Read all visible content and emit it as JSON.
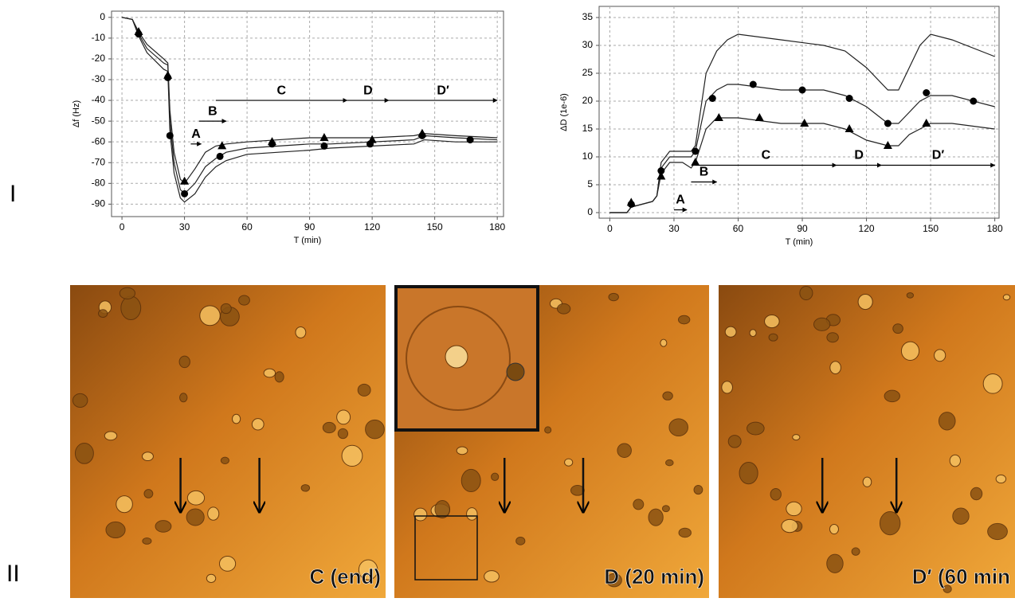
{
  "figure": {
    "panel_labels": [
      "I",
      "II"
    ]
  },
  "chart_data": [
    {
      "type": "line",
      "x_label": "T (min)",
      "y_label": "Δf (Hz)",
      "grid": true,
      "xlim": [
        -5,
        183
      ],
      "ylim": [
        -96,
        3
      ],
      "xticks": [
        0,
        30,
        60,
        90,
        120,
        150,
        180
      ],
      "yticks": [
        0,
        -10,
        -20,
        -30,
        -40,
        -50,
        -60,
        -70,
        -80,
        -90
      ],
      "x": [
        0,
        5,
        8,
        12,
        20,
        22,
        23,
        25,
        28,
        30,
        35,
        40,
        45,
        50,
        60,
        75,
        90,
        100,
        120,
        140,
        145,
        160,
        180
      ],
      "series": [
        {
          "color": "#222222",
          "values": [
            0,
            -1,
            -7,
            -13,
            -20,
            -22,
            -45,
            -65,
            -78,
            -80,
            -73,
            -65,
            -62,
            -61,
            -60,
            -59,
            -58,
            -58,
            -58,
            -57,
            -56,
            -57,
            -58
          ]
        },
        {
          "color": "#222222",
          "values": [
            0,
            -1,
            -8,
            -15,
            -22,
            -23,
            -50,
            -70,
            -83,
            -85,
            -80,
            -72,
            -68,
            -65,
            -63,
            -62,
            -61,
            -61,
            -60,
            -59,
            -57,
            -58,
            -59
          ]
        },
        {
          "color": "#222222",
          "values": [
            0,
            -1,
            -9,
            -17,
            -25,
            -26,
            -55,
            -75,
            -87,
            -89,
            -85,
            -77,
            -72,
            -69,
            -66,
            -65,
            -64,
            -63,
            -62,
            -61,
            -59,
            -60,
            -60
          ]
        }
      ],
      "markers": [
        {
          "shape": "triangle",
          "color": "#000000",
          "x": [
            8,
            22,
            30,
            48,
            72,
            97,
            120,
            144
          ],
          "values": [
            -7,
            -28,
            -79,
            -62,
            -60,
            -58,
            -59,
            -56
          ]
        },
        {
          "shape": "circle",
          "color": "#000000",
          "x": [
            8,
            22,
            23,
            30,
            47,
            72,
            97,
            119,
            144,
            167
          ],
          "values": [
            -8,
            -29,
            -57,
            -85,
            -67,
            -61,
            -62,
            -61,
            -57,
            -59
          ]
        }
      ],
      "phases": [
        {
          "label": "A",
          "start": 33,
          "end": 38,
          "y": -61
        },
        {
          "label": "B",
          "start": 37,
          "end": 50,
          "y": -50
        },
        {
          "label": "C",
          "start": 45,
          "end": 108,
          "y": -40
        },
        {
          "label": "D",
          "start": 108,
          "end": 128,
          "y": -40
        },
        {
          "label": "D′",
          "start": 128,
          "end": 180,
          "y": -40
        }
      ]
    },
    {
      "type": "line",
      "x_label": "T (min)",
      "y_label": "ΔD (1e-6)",
      "grid": true,
      "xlim": [
        -5,
        182
      ],
      "ylim": [
        -1,
        37
      ],
      "xticks": [
        0,
        30,
        60,
        90,
        120,
        150,
        180
      ],
      "yticks": [
        0,
        5,
        10,
        15,
        20,
        25,
        30,
        35
      ],
      "x": [
        0,
        8,
        10,
        20,
        22,
        24,
        28,
        34,
        38,
        40,
        45,
        50,
        55,
        60,
        80,
        100,
        110,
        120,
        130,
        135,
        140,
        145,
        150,
        160,
        180
      ],
      "series": [
        {
          "color": "#222222",
          "values": [
            0,
            0,
            1,
            2,
            3,
            9,
            11,
            11,
            11,
            12,
            25,
            29,
            31,
            32,
            31,
            30,
            29,
            26,
            22,
            22,
            26,
            30,
            32,
            31,
            28
          ]
        },
        {
          "color": "#222222",
          "values": [
            0,
            0,
            1,
            2,
            3,
            8,
            10,
            10,
            10,
            11,
            20,
            22,
            23,
            23,
            22,
            22,
            21,
            19,
            16,
            16,
            18,
            20,
            21,
            21,
            19
          ]
        },
        {
          "color": "#222222",
          "values": [
            0,
            0,
            1,
            2,
            3,
            7,
            9,
            9,
            8,
            9,
            15,
            17,
            17,
            17,
            16,
            16,
            15,
            13,
            12,
            12,
            14,
            15,
            16,
            16,
            15
          ]
        }
      ],
      "markers": [
        {
          "shape": "triangle",
          "color": "#000000",
          "x": [
            10,
            24,
            40,
            51,
            70,
            91,
            112,
            130,
            148
          ],
          "values": [
            1.8,
            6.5,
            9,
            17,
            17,
            16,
            15,
            12,
            16
          ]
        },
        {
          "shape": "circle",
          "color": "#000000",
          "x": [
            10,
            24,
            40,
            48,
            67,
            90,
            112,
            130,
            148,
            170
          ],
          "values": [
            1.5,
            7.5,
            11,
            20.5,
            23,
            22,
            20.5,
            16,
            21.5,
            20
          ]
        }
      ],
      "phases": [
        {
          "label": "A",
          "start": 30,
          "end": 36,
          "y": 0.5
        },
        {
          "label": "B",
          "start": 38,
          "end": 50,
          "y": 5.5
        },
        {
          "label": "C",
          "start": 40,
          "end": 106,
          "y": 8.5
        },
        {
          "label": "D",
          "start": 106,
          "end": 127,
          "y": 8.5
        },
        {
          "label": "D′",
          "start": 127,
          "end": 180,
          "y": 8.5
        }
      ]
    }
  ],
  "images": [
    {
      "caption": "C (end)"
    },
    {
      "caption": "D (20 min)"
    },
    {
      "caption": "D′ (60 min"
    }
  ]
}
